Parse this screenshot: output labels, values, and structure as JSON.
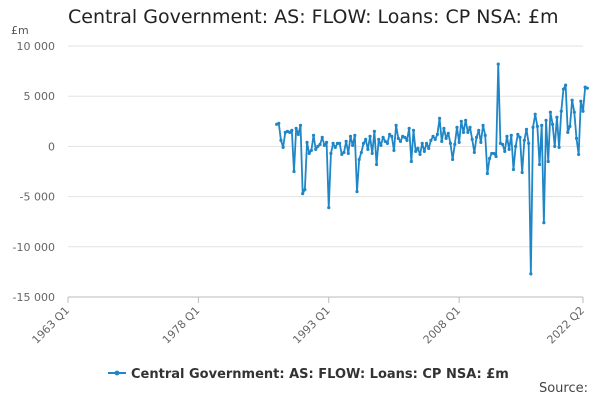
{
  "page": {
    "title": "Central Government: AS: FLOW: Loans: CP NSA: £m",
    "source_label": "Source:"
  },
  "chart_data": {
    "type": "line",
    "title": "Central Government: AS: FLOW: Loans: CP NSA: £m",
    "ylabel": "£m",
    "xlabel": "",
    "ylim": [
      -15000,
      10000
    ],
    "xlim_labels": [
      "1963 Q1",
      "2022 Q2"
    ],
    "y_ticks": [
      10000,
      5000,
      0,
      -5000,
      -10000,
      -15000
    ],
    "y_tick_labels": [
      "10 000",
      "5 000",
      "0",
      "-5 000",
      "-10 000",
      "-15 000"
    ],
    "x_ticks": [
      "1963 Q1",
      "1978 Q1",
      "1993 Q1",
      "2008 Q1",
      "2022 Q2"
    ],
    "grid": "horizontal",
    "legend_position": "bottom",
    "color": "#1f86c7",
    "series": [
      {
        "name": "Central Government: AS: FLOW: Loans: CP NSA: £m",
        "points": [
          [
            "1987 Q1",
            2200
          ],
          [
            "1987 Q2",
            2300
          ],
          [
            "1987 Q3",
            600
          ],
          [
            "1987 Q4",
            -100
          ],
          [
            "1988 Q1",
            1400
          ],
          [
            "1988 Q2",
            1500
          ],
          [
            "1988 Q3",
            1400
          ],
          [
            "1988 Q4",
            1600
          ],
          [
            "1989 Q1",
            -2500
          ],
          [
            "1989 Q2",
            1800
          ],
          [
            "1989 Q3",
            1200
          ],
          [
            "1989 Q4",
            2100
          ],
          [
            "1990 Q1",
            -4700
          ],
          [
            "1990 Q2",
            -4300
          ],
          [
            "1990 Q3",
            400
          ],
          [
            "1990 Q4",
            -700
          ],
          [
            "1991 Q1",
            -400
          ],
          [
            "1991 Q2",
            1100
          ],
          [
            "1991 Q3",
            -300
          ],
          [
            "1991 Q4",
            0
          ],
          [
            "1992 Q1",
            200
          ],
          [
            "1992 Q2",
            900
          ],
          [
            "1992 Q3",
            100
          ],
          [
            "1992 Q4",
            400
          ],
          [
            "1993 Q1",
            -6100
          ],
          [
            "1993 Q2",
            -700
          ],
          [
            "1993 Q3",
            300
          ],
          [
            "1993 Q4",
            -100
          ],
          [
            "1994 Q1",
            300
          ],
          [
            "1994 Q2",
            300
          ],
          [
            "1994 Q3",
            -800
          ],
          [
            "1994 Q4",
            -600
          ],
          [
            "1995 Q1",
            500
          ],
          [
            "1995 Q2",
            -700
          ],
          [
            "1995 Q3",
            1000
          ],
          [
            "1995 Q4",
            100
          ],
          [
            "1996 Q1",
            1100
          ],
          [
            "1996 Q2",
            -4500
          ],
          [
            "1996 Q3",
            -1300
          ],
          [
            "1996 Q4",
            -600
          ],
          [
            "1997 Q1",
            300
          ],
          [
            "1997 Q2",
            700
          ],
          [
            "1997 Q3",
            -300
          ],
          [
            "1997 Q4",
            1000
          ],
          [
            "1998 Q1",
            -700
          ],
          [
            "1998 Q2",
            1500
          ],
          [
            "1998 Q3",
            -1800
          ],
          [
            "1998 Q4",
            700
          ],
          [
            "1999 Q1",
            100
          ],
          [
            "1999 Q2",
            900
          ],
          [
            "1999 Q3",
            500
          ],
          [
            "1999 Q4",
            300
          ],
          [
            "2000 Q1",
            1200
          ],
          [
            "2000 Q2",
            1000
          ],
          [
            "2000 Q3",
            -400
          ],
          [
            "2000 Q4",
            2100
          ],
          [
            "2001 Q1",
            800
          ],
          [
            "2001 Q2",
            500
          ],
          [
            "2001 Q3",
            1000
          ],
          [
            "2001 Q4",
            900
          ],
          [
            "2002 Q1",
            600
          ],
          [
            "2002 Q2",
            1800
          ],
          [
            "2002 Q3",
            -1500
          ],
          [
            "2002 Q4",
            1600
          ],
          [
            "2003 Q1",
            -500
          ],
          [
            "2003 Q2",
            -200
          ],
          [
            "2003 Q3",
            -800
          ],
          [
            "2003 Q4",
            300
          ],
          [
            "2004 Q1",
            -500
          ],
          [
            "2004 Q2",
            300
          ],
          [
            "2004 Q3",
            -200
          ],
          [
            "2004 Q4",
            600
          ],
          [
            "2005 Q1",
            1000
          ],
          [
            "2005 Q2",
            700
          ],
          [
            "2005 Q3",
            1200
          ],
          [
            "2005 Q4",
            2800
          ],
          [
            "2006 Q1",
            500
          ],
          [
            "2006 Q2",
            1800
          ],
          [
            "2006 Q3",
            800
          ],
          [
            "2006 Q4",
            1300
          ],
          [
            "2007 Q1",
            300
          ],
          [
            "2007 Q2",
            -1300
          ],
          [
            "2007 Q3",
            200
          ],
          [
            "2007 Q4",
            1900
          ],
          [
            "2008 Q1",
            400
          ],
          [
            "2008 Q2",
            2500
          ],
          [
            "2008 Q3",
            1400
          ],
          [
            "2008 Q4",
            2600
          ],
          [
            "2009 Q1",
            1400
          ],
          [
            "2009 Q2",
            1900
          ],
          [
            "2009 Q3",
            700
          ],
          [
            "2009 Q4",
            -600
          ],
          [
            "2010 Q1",
            900
          ],
          [
            "2010 Q2",
            1600
          ],
          [
            "2010 Q3",
            400
          ],
          [
            "2010 Q4",
            2100
          ],
          [
            "2011 Q1",
            1100
          ],
          [
            "2011 Q2",
            -2700
          ],
          [
            "2011 Q3",
            -1200
          ],
          [
            "2011 Q4",
            -700
          ],
          [
            "2012 Q1",
            -700
          ],
          [
            "2012 Q2",
            -1000
          ],
          [
            "2012 Q3",
            8200
          ],
          [
            "2012 Q4",
            300
          ],
          [
            "2013 Q1",
            200
          ],
          [
            "2013 Q2",
            -500
          ],
          [
            "2013 Q3",
            1000
          ],
          [
            "2013 Q4",
            -300
          ],
          [
            "2014 Q1",
            1100
          ],
          [
            "2014 Q2",
            -2300
          ],
          [
            "2014 Q3",
            0
          ],
          [
            "2014 Q4",
            1200
          ],
          [
            "2015 Q1",
            900
          ],
          [
            "2015 Q2",
            -2600
          ],
          [
            "2015 Q3",
            600
          ],
          [
            "2015 Q4",
            1700
          ],
          [
            "2016 Q1",
            300
          ],
          [
            "2016 Q2",
            -12700
          ],
          [
            "2016 Q3",
            1900
          ],
          [
            "2016 Q4",
            3200
          ],
          [
            "2017 Q1",
            2000
          ],
          [
            "2017 Q2",
            -1800
          ],
          [
            "2017 Q3",
            2100
          ],
          [
            "2017 Q4",
            -7600
          ],
          [
            "2018 Q1",
            2600
          ],
          [
            "2018 Q2",
            -1500
          ],
          [
            "2018 Q3",
            3400
          ],
          [
            "2018 Q4",
            2200
          ],
          [
            "2019 Q1",
            0
          ],
          [
            "2019 Q2",
            2900
          ],
          [
            "2019 Q3",
            -100
          ],
          [
            "2019 Q4",
            3500
          ],
          [
            "2020 Q1",
            5700
          ],
          [
            "2020 Q2",
            6100
          ],
          [
            "2020 Q3",
            1400
          ],
          [
            "2020 Q4",
            2000
          ],
          [
            "2021 Q1",
            4600
          ],
          [
            "2021 Q2",
            3400
          ],
          [
            "2021 Q3",
            800
          ],
          [
            "2021 Q4",
            -800
          ],
          [
            "2022 Q1",
            4500
          ],
          [
            "2022 Q2",
            3500
          ],
          [
            "2022 Q3",
            5900
          ],
          [
            "2022 Q4",
            5800
          ]
        ]
      }
    ]
  }
}
